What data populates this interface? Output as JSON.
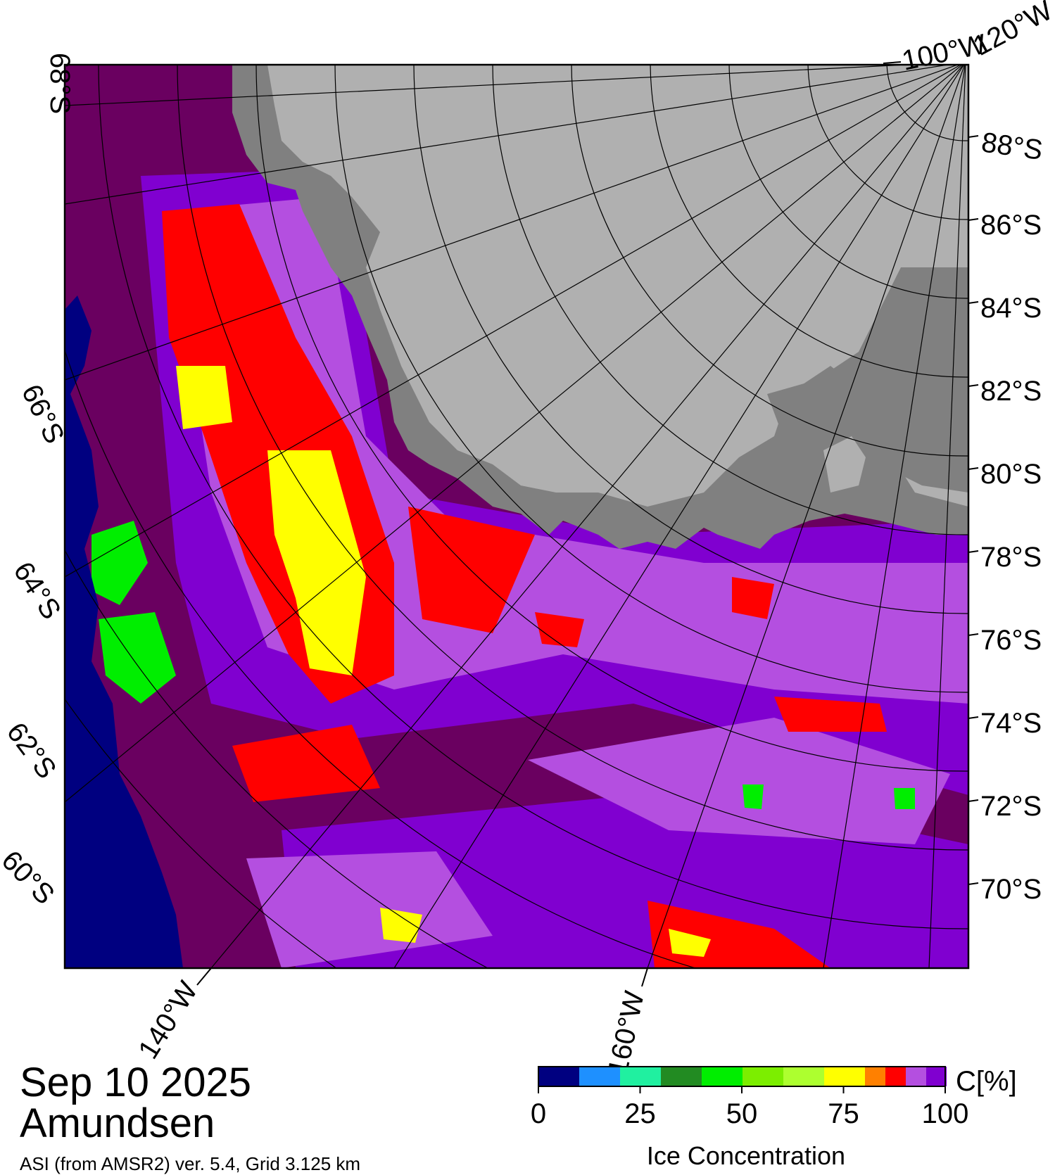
{
  "title": {
    "date": "Sep 10 2025",
    "region": "Amundsen",
    "subtitle": "ASI (from AMSR2) ver. 5.4,  Grid 3.125 km"
  },
  "colorbar": {
    "unit": "C[%]",
    "label": "Ice Concentration",
    "ticks": [
      "0",
      "25",
      "50",
      "75",
      "100"
    ],
    "colors": [
      "#000080",
      "#1e90ff",
      "#20f0a0",
      "#228b22",
      "#00ee00",
      "#7cee00",
      "#adff2f",
      "#ffff00",
      "#ff8000",
      "#ff0000",
      "#b44fe0",
      "#8000d0"
    ]
  },
  "graticule": {
    "right_labels": [
      "88°S",
      "86°S",
      "84°S",
      "82°S",
      "80°S",
      "78°S",
      "76°S",
      "74°S",
      "72°S",
      "70°S"
    ],
    "left_labels": [
      "68°S",
      "66°S",
      "64°S",
      "62°S",
      "60°S"
    ],
    "top_labels": [
      "100°W",
      "120°W"
    ],
    "bottom_labels": [
      "140°W",
      "160°W"
    ]
  },
  "map_colors": {
    "land_ice": "#b0b0b0",
    "ice_shelf": "#808080",
    "open_water": "#000080",
    "full_ice": "#6a0060",
    "high_ice": "#8000d0",
    "mid_ice": "#b44fe0",
    "red_ice": "#ff0000",
    "yellow_ice": "#ffff00",
    "green_ice": "#00ee00"
  }
}
